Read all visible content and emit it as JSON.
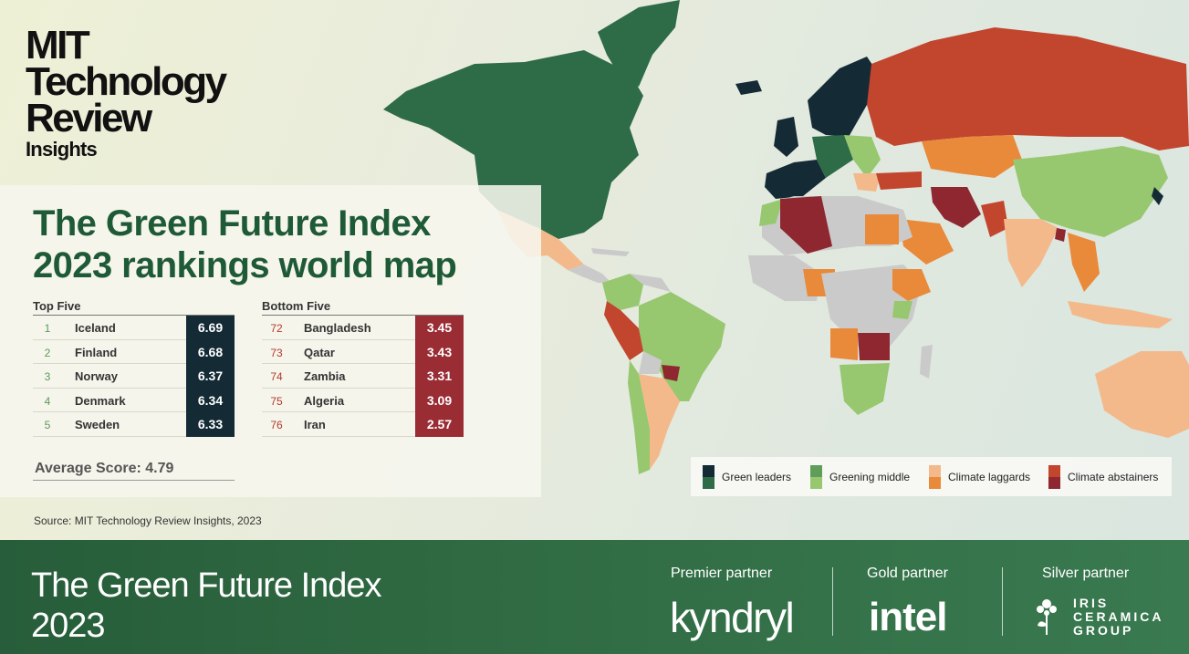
{
  "logo": {
    "line1": "MIT",
    "line2": "Technology",
    "line3": "Review",
    "line4": "Insights"
  },
  "title": {
    "line1": "The Green Future Index",
    "line2": "2023 rankings world map"
  },
  "top_five": {
    "heading": "Top Five",
    "rows": [
      {
        "rank": "1",
        "country": "Iceland",
        "score": "6.69"
      },
      {
        "rank": "2",
        "country": "Finland",
        "score": "6.68"
      },
      {
        "rank": "3",
        "country": "Norway",
        "score": "6.37"
      },
      {
        "rank": "4",
        "country": "Denmark",
        "score": "6.34"
      },
      {
        "rank": "5",
        "country": "Sweden",
        "score": "6.33"
      }
    ]
  },
  "bottom_five": {
    "heading": "Bottom Five",
    "rows": [
      {
        "rank": "72",
        "country": "Bangladesh",
        "score": "3.45"
      },
      {
        "rank": "73",
        "country": "Qatar",
        "score": "3.43"
      },
      {
        "rank": "74",
        "country": "Zambia",
        "score": "3.31"
      },
      {
        "rank": "75",
        "country": "Algeria",
        "score": "3.09"
      },
      {
        "rank": "76",
        "country": "Iran",
        "score": "2.57"
      }
    ]
  },
  "average": "Average Score: 4.79",
  "source": "Source: MIT Technology Review Insights, 2023",
  "legend": [
    {
      "label": "Green leaders",
      "colors": [
        "#142a35",
        "#2e6b47"
      ]
    },
    {
      "label": "Greening middle",
      "colors": [
        "#5f9e5a",
        "#97c76f"
      ]
    },
    {
      "label": "Climate laggards",
      "colors": [
        "#f3b98b",
        "#e98a3a"
      ]
    },
    {
      "label": "Climate abstainers",
      "colors": [
        "#c2452e",
        "#8e2730"
      ]
    }
  ],
  "footer": {
    "title_line1": "The Green Future Index",
    "title_line2": "2023",
    "partners": [
      {
        "type": "Premier partner",
        "brand": "kyndryl"
      },
      {
        "type": "Gold partner",
        "brand": "intel"
      },
      {
        "type": "Silver partner",
        "brand": "IRIS CERAMICA GROUP",
        "brand_lines": [
          "IRIS",
          "CERAMICA",
          "GROUP"
        ]
      }
    ]
  },
  "colors": {
    "no_data": "#cacaca",
    "title_green": "#1f5a37",
    "leader_dark": "#142a35",
    "abstainer_dark": "#9a2c34"
  }
}
